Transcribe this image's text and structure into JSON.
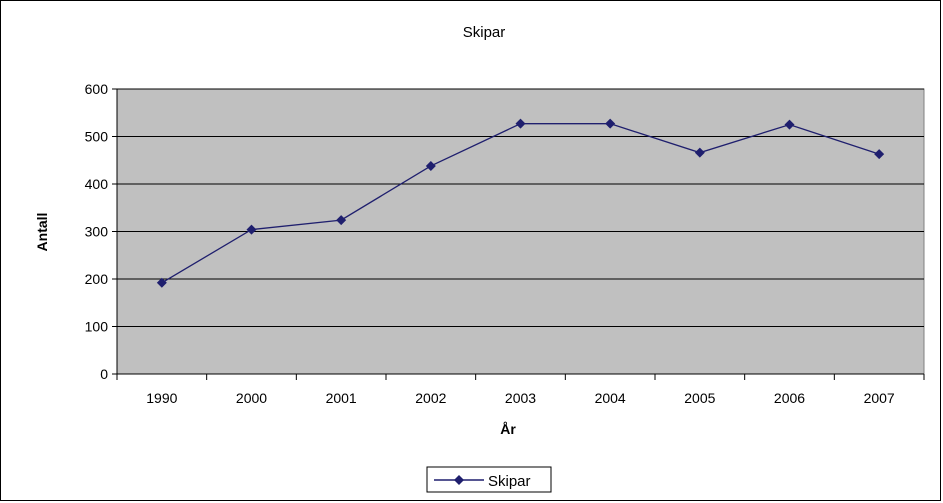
{
  "chart_data": {
    "type": "line",
    "title": "Skipar",
    "xlabel": "År",
    "ylabel": "Antall",
    "categories": [
      "1990",
      "2000",
      "2001",
      "2002",
      "2003",
      "2004",
      "2005",
      "2006",
      "2007"
    ],
    "series": [
      {
        "name": "Skipar",
        "values": [
          192,
          304,
          324,
          438,
          527,
          527,
          466,
          525,
          463
        ]
      }
    ],
    "ylim": [
      0,
      600
    ],
    "yticks": [
      0,
      100,
      200,
      300,
      400,
      500,
      600
    ],
    "grid": true,
    "legend": "bottom-center",
    "colors": {
      "plot_background": "#c0c0c0",
      "line": "#1f1f6e",
      "grid": "#000000"
    }
  }
}
